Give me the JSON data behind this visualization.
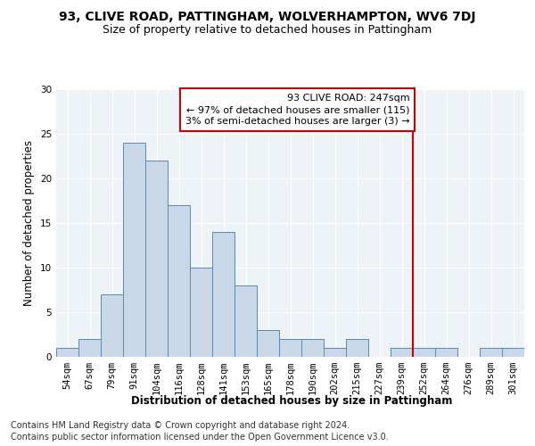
{
  "title1": "93, CLIVE ROAD, PATTINGHAM, WOLVERHAMPTON, WV6 7DJ",
  "title2": "Size of property relative to detached houses in Pattingham",
  "xlabel": "Distribution of detached houses by size in Pattingham",
  "ylabel": "Number of detached properties",
  "bin_labels": [
    "54sqm",
    "67sqm",
    "79sqm",
    "91sqm",
    "104sqm",
    "116sqm",
    "128sqm",
    "141sqm",
    "153sqm",
    "165sqm",
    "178sqm",
    "190sqm",
    "202sqm",
    "215sqm",
    "227sqm",
    "239sqm",
    "252sqm",
    "264sqm",
    "276sqm",
    "289sqm",
    "301sqm"
  ],
  "bar_values": [
    1,
    2,
    7,
    24,
    22,
    17,
    10,
    14,
    8,
    3,
    2,
    2,
    1,
    2,
    0,
    1,
    1,
    1,
    0,
    1,
    1
  ],
  "bar_color": "#c8d8e8",
  "bar_edgecolor": "#5a8ab0",
  "annotation_text": "93 CLIVE ROAD: 247sqm\n← 97% of detached houses are smaller (115)\n3% of semi-detached houses are larger (3) →",
  "annotation_box_color": "#ffffff",
  "annotation_box_edgecolor": "#cc0000",
  "vline_color": "#cc0000",
  "ylim": [
    0,
    30
  ],
  "yticks": [
    0,
    5,
    10,
    15,
    20,
    25,
    30
  ],
  "footer1": "Contains HM Land Registry data © Crown copyright and database right 2024.",
  "footer2": "Contains public sector information licensed under the Open Government Licence v3.0.",
  "bg_color": "#eef3f8",
  "grid_color": "#ffffff",
  "title1_fontsize": 10,
  "title2_fontsize": 9,
  "axis_label_fontsize": 8.5,
  "tick_fontsize": 7.5,
  "annotation_fontsize": 8,
  "footer_fontsize": 7
}
